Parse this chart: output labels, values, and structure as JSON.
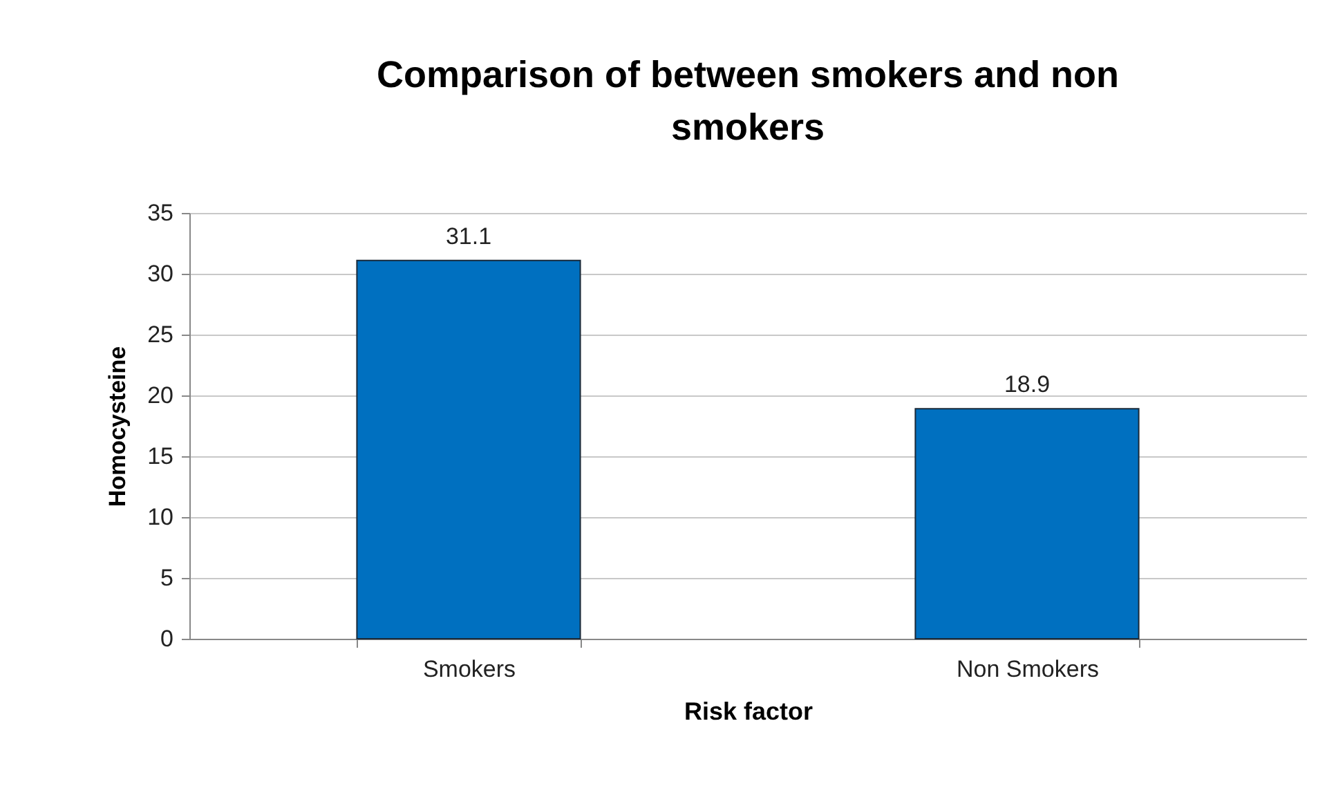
{
  "chart_data": {
    "type": "bar",
    "title": "Comparison of  between smokers and non smokers",
    "xlabel": "Risk factor",
    "ylabel": "Homocysteine",
    "categories": [
      "Smokers",
      "Non Smokers"
    ],
    "values": [
      31.1,
      18.9
    ],
    "color": "#0070c0",
    "ylim": [
      0,
      35
    ],
    "yticks": [
      0,
      5,
      10,
      15,
      20,
      25,
      30,
      35
    ],
    "grid": "y",
    "data_labels": true
  }
}
